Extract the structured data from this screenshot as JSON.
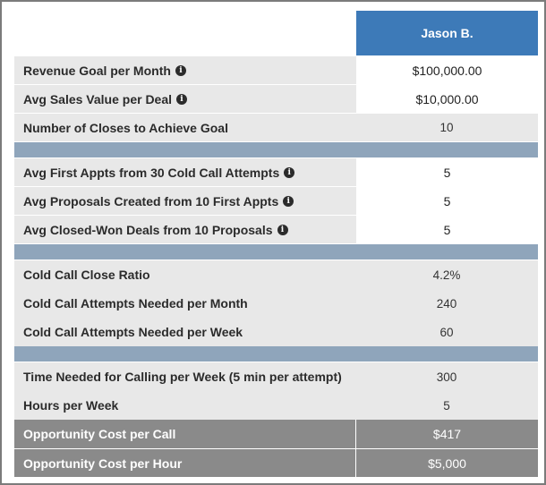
{
  "header": {
    "name": "Jason B."
  },
  "section1": [
    {
      "label": "Revenue Goal per Month",
      "info": true,
      "value": "$100,000.00",
      "kind": "input"
    },
    {
      "label": "Avg Sales Value per Deal",
      "info": true,
      "value": "$10,000.00",
      "kind": "input"
    },
    {
      "label": "Number of Closes to Achieve Goal",
      "info": false,
      "value": "10",
      "kind": "calc"
    }
  ],
  "section2": [
    {
      "label": "Avg First Appts from 30 Cold Call Attempts",
      "info": true,
      "value": "5",
      "kind": "input"
    },
    {
      "label": "Avg Proposals Created from 10 First Appts",
      "info": true,
      "value": "5",
      "kind": "input"
    },
    {
      "label": "Avg Closed-Won Deals from 10 Proposals",
      "info": true,
      "value": "5",
      "kind": "input"
    }
  ],
  "section3": [
    {
      "label": "Cold Call Close Ratio",
      "value": "4.2%"
    },
    {
      "label": "Cold Call Attempts Needed per Month",
      "value": "240"
    },
    {
      "label": "Cold Call Attempts Needed per Week",
      "value": "60"
    }
  ],
  "section4": [
    {
      "label": "Time Needed for Calling per Week (5 min per attempt)",
      "value": "300"
    },
    {
      "label": "Hours per Week",
      "value": "5"
    }
  ],
  "summary": [
    {
      "label": "Opportunity Cost per Call",
      "value": "$417"
    },
    {
      "label": "Opportunity Cost per Hour",
      "value": "$5,000"
    }
  ],
  "colors": {
    "header": "#3d7ab8",
    "separator": "#8fa5bb",
    "label_bg": "#e8e8e8",
    "summary_bg": "#8a8a8a"
  },
  "icons": {
    "info": "info-circle-icon"
  }
}
